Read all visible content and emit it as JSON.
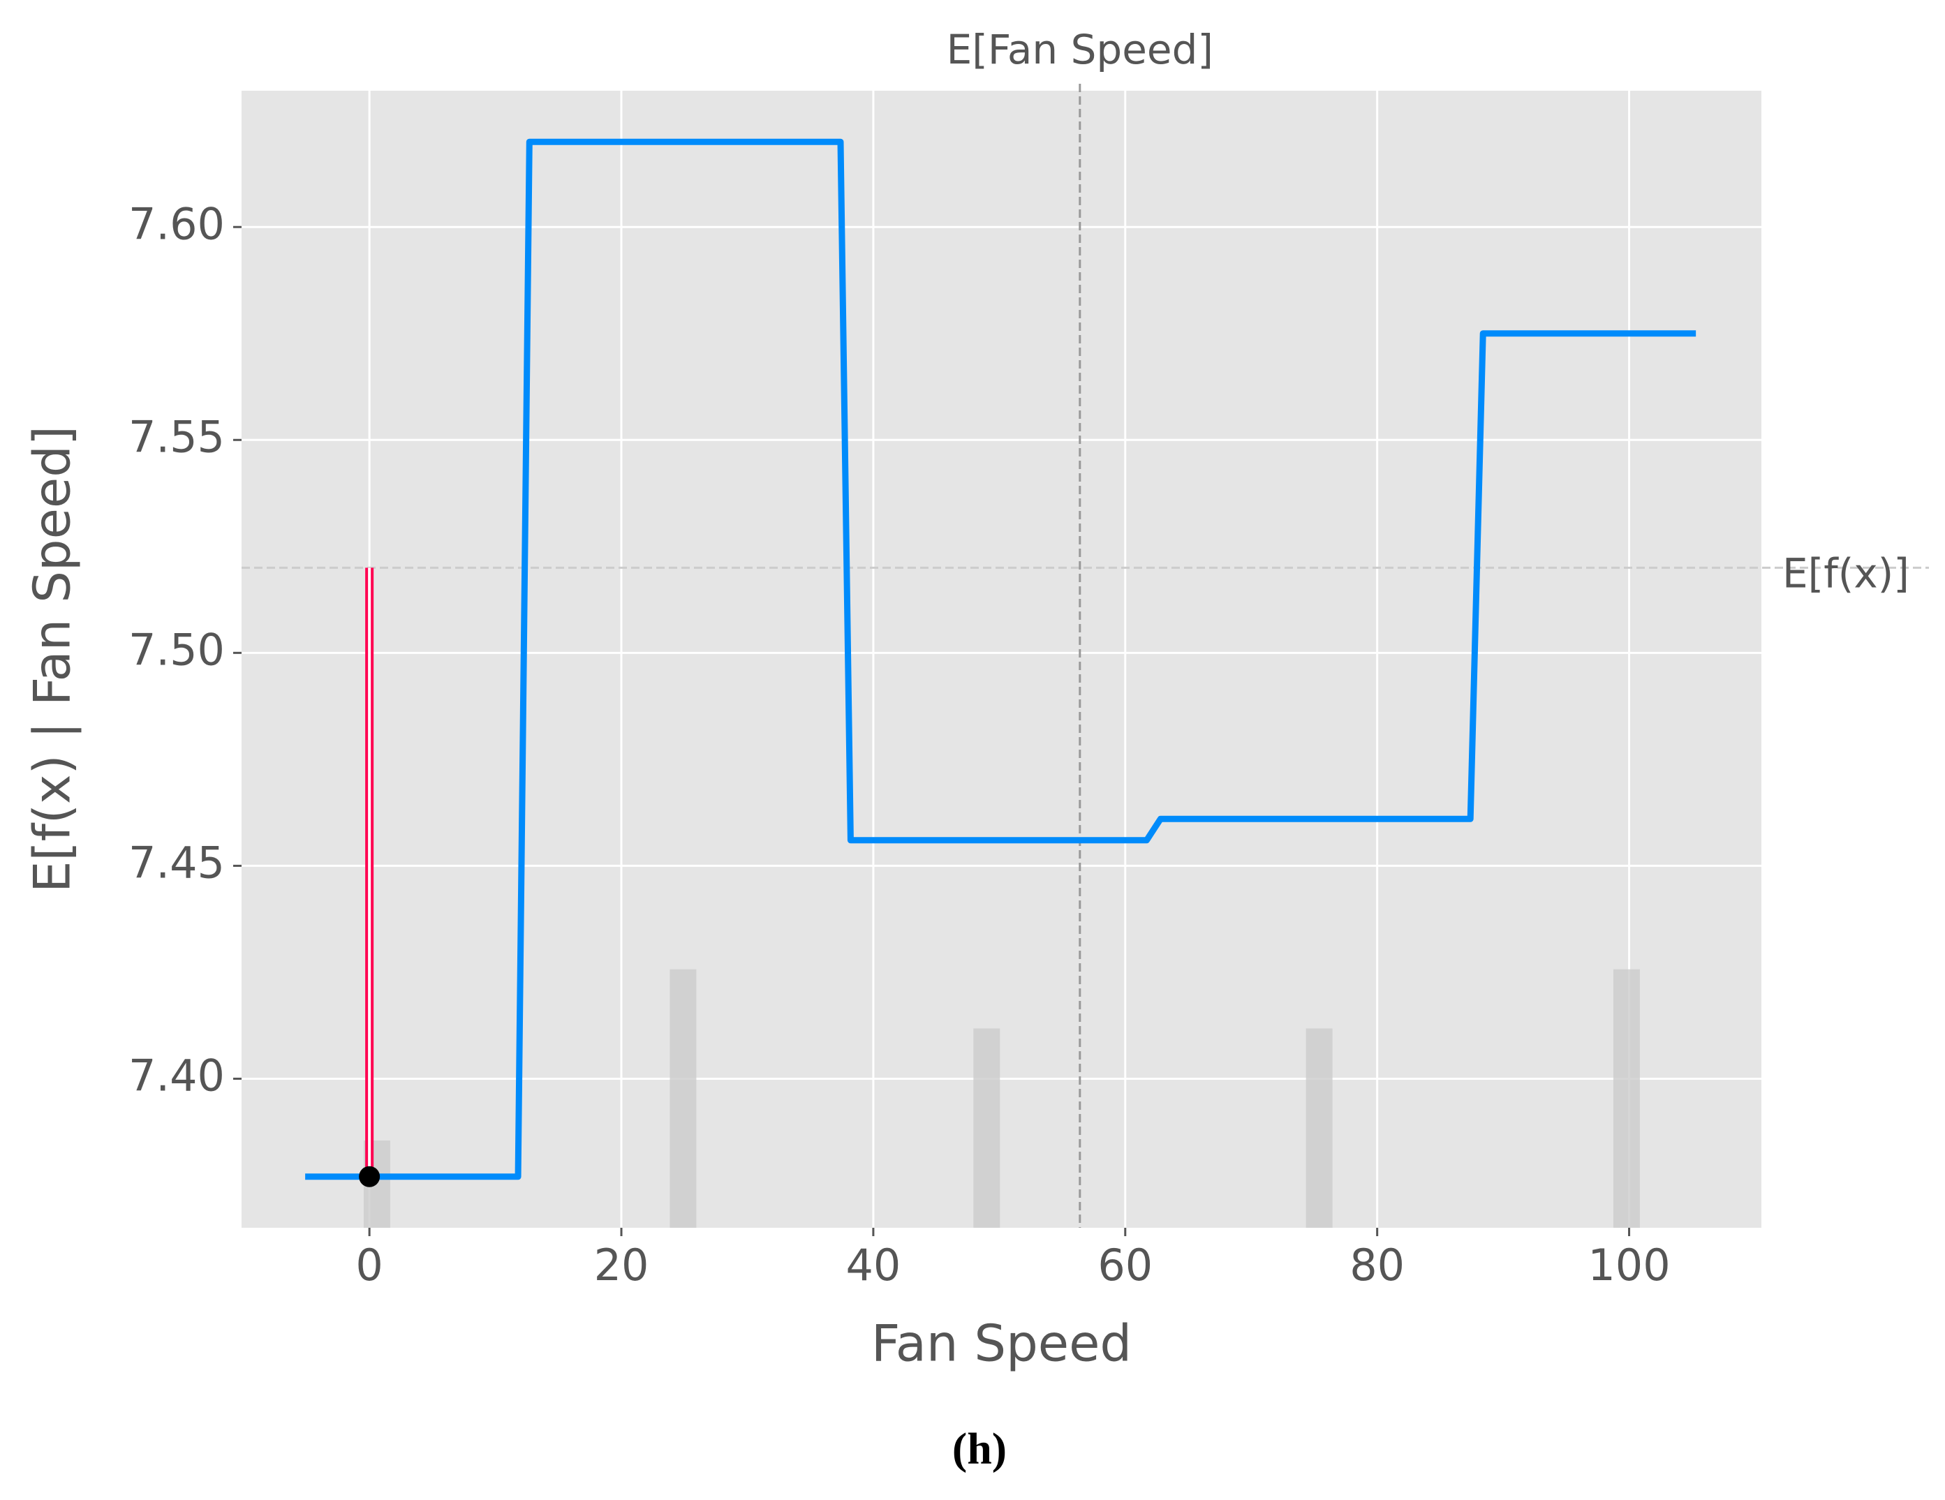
{
  "chart_data": {
    "type": "line",
    "x_label": "Fan Speed",
    "y_label": "E[f(x) | Fan Speed]",
    "caption": "(h)",
    "x": [
      -5.1,
      11.8,
      12.7,
      37.4,
      38.2,
      61.7,
      62.8,
      87.4,
      88.4,
      105.3
    ],
    "values": [
      7.377,
      7.377,
      7.62,
      7.62,
      7.456,
      7.456,
      7.461,
      7.461,
      7.575,
      7.575
    ],
    "color": "#008bfb",
    "histogram": {
      "x": [
        0.6,
        24.9,
        49.0,
        75.4,
        99.8
      ],
      "values": [
        7.3855,
        7.4257,
        7.4118,
        7.4118,
        7.4257
      ],
      "color": "#cccccc"
    },
    "expected_value": {
      "label": "E[f(x)]",
      "value": 7.52
    },
    "expected_feature": {
      "label": "E[Fan Speed]",
      "value": 56.4
    },
    "sample": {
      "x": 0,
      "y": 7.377,
      "color": "#ff0051"
    },
    "xlim": [
      -10.15,
      110.5
    ],
    "ylim": [
      7.365,
      7.632
    ],
    "xticks": [
      0,
      20,
      40,
      60,
      80,
      100
    ],
    "yticks": [
      {
        "value": 7.4,
        "label": "7.40"
      },
      {
        "value": 7.45,
        "label": "7.45"
      },
      {
        "value": 7.5,
        "label": "7.50"
      },
      {
        "value": 7.55,
        "label": "7.55"
      },
      {
        "value": 7.6,
        "label": "7.60"
      }
    ],
    "grid": true
  }
}
